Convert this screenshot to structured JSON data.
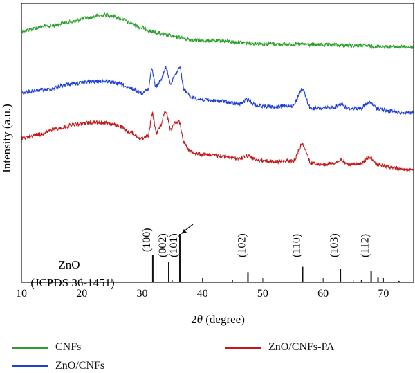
{
  "chart_data": {
    "type": "line",
    "xlabel_prefix": "2",
    "xlabel_symbol": "θ",
    "xlabel_suffix": " (degree)",
    "ylabel": "Intensity (a.u.)",
    "xlim": [
      10,
      75
    ],
    "xticks": [
      10,
      20,
      30,
      40,
      50,
      60,
      70
    ],
    "series": [
      {
        "name": "CNFs",
        "color": "#2ca02c",
        "x": [
          10,
          14,
          18,
          21,
          23,
          24,
          25,
          26.5,
          28,
          30,
          32,
          34,
          36,
          38,
          40,
          43,
          46,
          50,
          55,
          60,
          65,
          70,
          75
        ],
        "y": [
          3.15,
          3.0,
          2.85,
          2.7,
          2.62,
          2.6,
          2.62,
          2.72,
          2.88,
          3.05,
          3.2,
          3.3,
          3.38,
          3.45,
          3.5,
          3.5,
          3.55,
          3.6,
          3.62,
          3.64,
          3.66,
          3.7,
          3.72
        ]
      },
      {
        "name": "ZnO/CNFs",
        "color": "#1f3fd6",
        "x": [
          10,
          14,
          18,
          22,
          24,
          26,
          28,
          30,
          31,
          31.6,
          32.3,
          33,
          33.9,
          34.8,
          35.5,
          36.2,
          37,
          38,
          40,
          43,
          46,
          47.5,
          49,
          52,
          55,
          56.5,
          58,
          60,
          62,
          63,
          64,
          66,
          67.8,
          69,
          71,
          73,
          75
        ],
        "y": [
          5.3,
          5.2,
          5.0,
          4.92,
          4.9,
          4.98,
          5.15,
          5.3,
          5.2,
          4.5,
          5.1,
          4.9,
          4.45,
          4.98,
          4.65,
          4.4,
          5.2,
          5.45,
          5.55,
          5.6,
          5.7,
          5.55,
          5.75,
          5.8,
          5.75,
          5.2,
          5.85,
          5.85,
          5.8,
          5.7,
          5.85,
          5.85,
          5.65,
          5.85,
          5.95,
          6.0,
          6.0
        ]
      },
      {
        "name": "ZnO/CNFs-PA",
        "color": "#c21a1a",
        "x": [
          10,
          13,
          16,
          19,
          22,
          24,
          26,
          28,
          30,
          31,
          31.7,
          32.4,
          33,
          33.9,
          34.8,
          35.4,
          36.1,
          37,
          38,
          40,
          43,
          46,
          47.5,
          49,
          52,
          55,
          56.6,
          58,
          60,
          62,
          63,
          64,
          66,
          67.8,
          69,
          71,
          73,
          75
        ],
        "y": [
          6.9,
          6.75,
          6.55,
          6.4,
          6.33,
          6.35,
          6.45,
          6.68,
          6.9,
          6.8,
          6.05,
          6.7,
          6.45,
          5.95,
          6.6,
          6.35,
          6.3,
          7.05,
          7.35,
          7.45,
          7.5,
          7.6,
          7.5,
          7.65,
          7.7,
          7.68,
          7.1,
          7.75,
          7.8,
          7.75,
          7.65,
          7.8,
          7.8,
          7.55,
          7.8,
          7.9,
          7.95,
          8.0
        ]
      }
    ],
    "reference": {
      "material": "ZnO",
      "card": "(JCPDS 36-1451)",
      "peaks": [
        {
          "pos": 31.77,
          "label": "(100)",
          "rel": 0.57
        },
        {
          "pos": 34.42,
          "label": "(002)",
          "rel": 0.42
        },
        {
          "pos": 36.25,
          "label": "(101)",
          "rel": 1.0
        },
        {
          "pos": 47.54,
          "label": "(102)",
          "rel": 0.21
        },
        {
          "pos": 56.6,
          "label": "(110)",
          "rel": 0.32
        },
        {
          "pos": 62.86,
          "label": "(103)",
          "rel": 0.28
        },
        {
          "pos": 66.38,
          "label": "",
          "rel": 0.05
        },
        {
          "pos": 67.96,
          "label": "(112)",
          "rel": 0.23
        },
        {
          "pos": 69.1,
          "label": "",
          "rel": 0.11
        },
        {
          "pos": 72.56,
          "label": "",
          "rel": 0.03
        }
      ]
    }
  }
}
